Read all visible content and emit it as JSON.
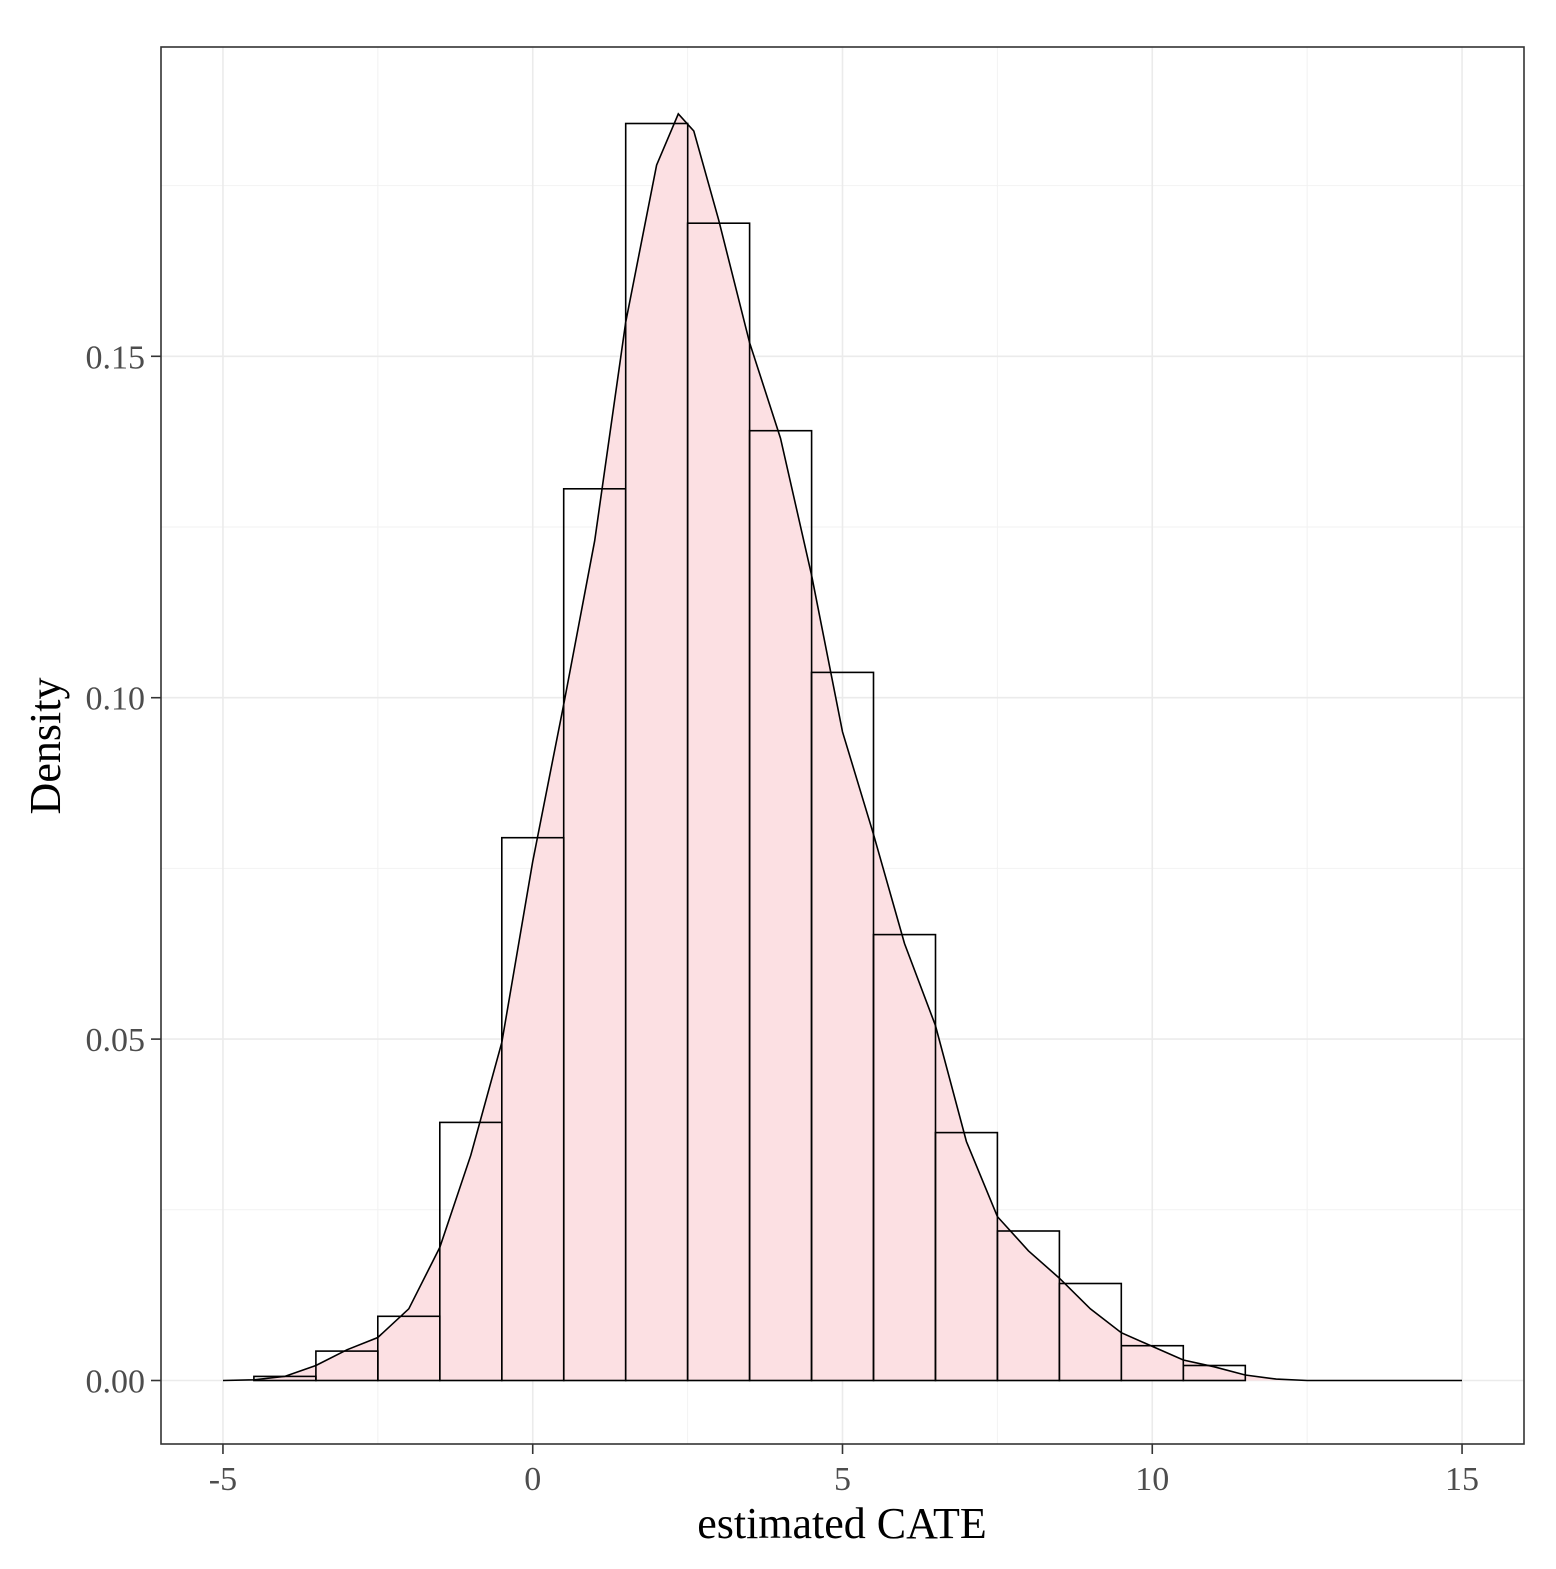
{
  "chart_data": {
    "type": "histogram+density",
    "xlabel": "estimated CATE",
    "ylabel": "Density",
    "xlim": [
      -6,
      16
    ],
    "ylim": [
      -0.0093,
      0.1953
    ],
    "x_ticks": [
      {
        "value": -5,
        "label": "-5"
      },
      {
        "value": 0,
        "label": "0"
      },
      {
        "value": 5,
        "label": "5"
      },
      {
        "value": 10,
        "label": "10"
      },
      {
        "value": 15,
        "label": "15"
      }
    ],
    "y_ticks": [
      {
        "value": 0.0,
        "label": "0.00"
      },
      {
        "value": 0.05,
        "label": "0.05"
      },
      {
        "value": 0.1,
        "label": "0.10"
      },
      {
        "value": 0.15,
        "label": "0.15"
      }
    ],
    "x_minor": [
      -2.5,
      2.5,
      7.5,
      12.5
    ],
    "y_minor": [
      0.025,
      0.075,
      0.125,
      0.175
    ],
    "bins": [
      {
        "x0": -4.5,
        "x1": -3.5,
        "density": 0.0006
      },
      {
        "x0": -3.5,
        "x1": -2.5,
        "density": 0.0043
      },
      {
        "x0": -2.5,
        "x1": -1.5,
        "density": 0.0094
      },
      {
        "x0": -1.5,
        "x1": -0.5,
        "density": 0.0378
      },
      {
        "x0": -0.5,
        "x1": 0.5,
        "density": 0.0795
      },
      {
        "x0": 0.5,
        "x1": 1.5,
        "density": 0.1306
      },
      {
        "x0": 1.5,
        "x1": 2.5,
        "density": 0.1841
      },
      {
        "x0": 2.5,
        "x1": 3.5,
        "density": 0.1695
      },
      {
        "x0": 3.5,
        "x1": 4.5,
        "density": 0.1391
      },
      {
        "x0": 4.5,
        "x1": 5.5,
        "density": 0.1037
      },
      {
        "x0": 5.5,
        "x1": 6.5,
        "density": 0.0653
      },
      {
        "x0": 6.5,
        "x1": 7.5,
        "density": 0.0363
      },
      {
        "x0": 7.5,
        "x1": 8.5,
        "density": 0.0219
      },
      {
        "x0": 8.5,
        "x1": 9.5,
        "density": 0.0142
      },
      {
        "x0": 9.5,
        "x1": 10.5,
        "density": 0.0051
      },
      {
        "x0": 10.5,
        "x1": 11.5,
        "density": 0.0022
      }
    ],
    "density_curve": [
      [
        -5,
        0.0
      ],
      [
        -4.5,
        0.0001
      ],
      [
        -4.0,
        0.0006
      ],
      [
        -3.5,
        0.0022
      ],
      [
        -3.0,
        0.0045
      ],
      [
        -2.5,
        0.0063
      ],
      [
        -2.0,
        0.0105
      ],
      [
        -1.5,
        0.0195
      ],
      [
        -1.0,
        0.033
      ],
      [
        -0.5,
        0.0495
      ],
      [
        0.0,
        0.076
      ],
      [
        0.5,
        0.099
      ],
      [
        1.0,
        0.123
      ],
      [
        1.5,
        0.155
      ],
      [
        2.0,
        0.178
      ],
      [
        2.35,
        0.1855
      ],
      [
        2.6,
        0.183
      ],
      [
        3.0,
        0.17
      ],
      [
        3.5,
        0.152
      ],
      [
        4.0,
        0.138
      ],
      [
        4.5,
        0.118
      ],
      [
        5.0,
        0.095
      ],
      [
        5.5,
        0.08
      ],
      [
        6.0,
        0.064
      ],
      [
        6.5,
        0.052
      ],
      [
        7.0,
        0.035
      ],
      [
        7.5,
        0.024
      ],
      [
        8.0,
        0.019
      ],
      [
        8.5,
        0.015
      ],
      [
        9.0,
        0.0105
      ],
      [
        9.5,
        0.007
      ],
      [
        10.0,
        0.005
      ],
      [
        10.5,
        0.003
      ],
      [
        11.0,
        0.002
      ],
      [
        11.5,
        0.0008
      ],
      [
        12.0,
        0.0002
      ],
      [
        12.5,
        0.0
      ],
      [
        15,
        0.0
      ]
    ],
    "fill_color": "#fce0e3",
    "line_color": "#000000"
  }
}
